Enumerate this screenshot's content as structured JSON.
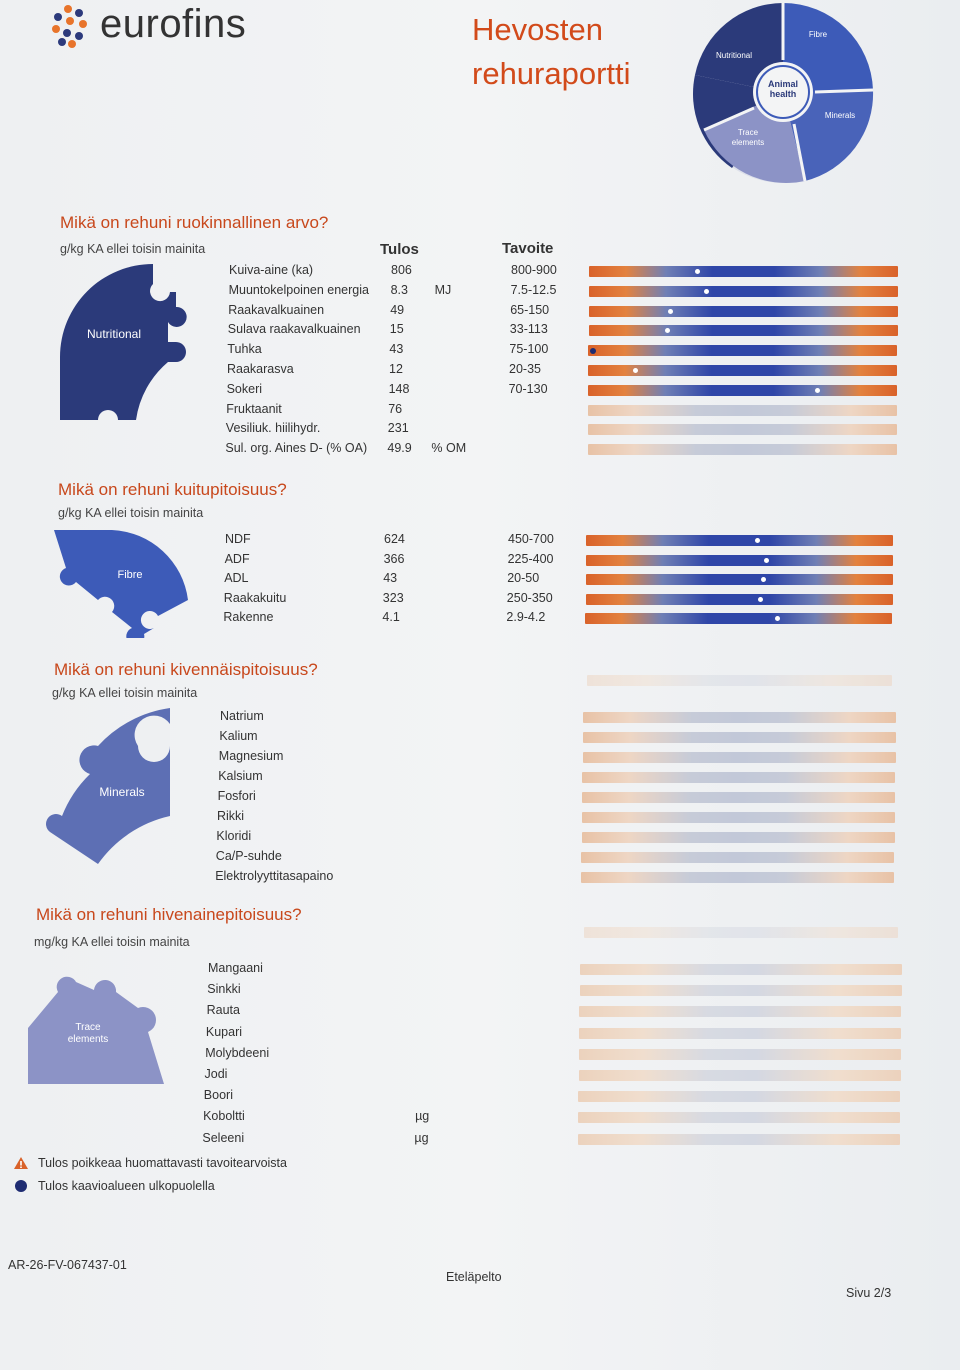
{
  "brand": {
    "name": "eurofins"
  },
  "report": {
    "title_line1": "Hevosten",
    "title_line2": "rehuraportti"
  },
  "wheel": {
    "labels": {
      "nutritional": "Nutritional",
      "fibre": "Fibre",
      "animal_health": "Animal health",
      "minerals": "Minerals",
      "trace": "Trace elements"
    }
  },
  "colors": {
    "accent": "#c8481c",
    "navy": "#2b3a7a",
    "blue": "#3d5bb8",
    "slate": "#5d6fb4",
    "lavender": "#8c93c6",
    "orange": "#d9622a"
  },
  "headers": {
    "result": "Tulos",
    "target": "Tavoite"
  },
  "nutritional": {
    "title": "Mikä on rehuni ruokinnallinen arvo?",
    "unit_note": "g/kg KA ellei toisin mainita",
    "puzzle_label": "Nutritional",
    "rows": [
      {
        "label": "Kuiva-aine (ka)",
        "value": "806",
        "unit": "",
        "target": "800-900",
        "bar": "active",
        "marker": 0.35,
        "marker_style": "white"
      },
      {
        "label": "Muuntokelpoinen energia",
        "value": "8.3",
        "unit": "MJ",
        "target": "7.5-12.5",
        "bar": "active",
        "marker": 0.38,
        "marker_style": "white"
      },
      {
        "label": "Raakavalkuainen",
        "value": "49",
        "unit": "",
        "target": "65-150",
        "bar": "active",
        "marker": 0.26,
        "marker_style": "white"
      },
      {
        "label": "Sulava raakavalkuainen",
        "value": "15",
        "unit": "",
        "target": "33-113",
        "bar": "active",
        "marker": 0.25,
        "marker_style": "white"
      },
      {
        "label": "Tuhka",
        "value": "43",
        "unit": "",
        "target": "75-100",
        "bar": "active",
        "marker": 0.005,
        "marker_style": "dark"
      },
      {
        "label": "Raakarasva",
        "value": "12",
        "unit": "",
        "target": "20-35",
        "bar": "active",
        "marker": 0.15,
        "marker_style": "white"
      },
      {
        "label": "Sokeri",
        "value": "148",
        "unit": "",
        "target": "70-130",
        "bar": "active",
        "marker": 0.75,
        "marker_style": "white"
      },
      {
        "label": "Fruktaanit",
        "value": "76",
        "unit": "",
        "target": "",
        "bar": "pale",
        "marker": null
      },
      {
        "label": "Vesiliuk. hiilihydr.",
        "value": "231",
        "unit": "",
        "target": "",
        "bar": "pale",
        "marker": null
      },
      {
        "label": "Sul. org. Aines D- (% OA)",
        "value": "49.9",
        "unit": "% OM",
        "target": "",
        "bar": "pale",
        "marker": null
      }
    ]
  },
  "fibre": {
    "title": "Mikä on rehuni kuitupitoisuus?",
    "unit_note": "g/kg KA ellei toisin mainita",
    "puzzle_label": "Fibre",
    "rows": [
      {
        "label": "NDF",
        "value": "624",
        "unit": "",
        "target": "450-700",
        "bar": "active",
        "marker": 0.56,
        "marker_style": "white"
      },
      {
        "label": "ADF",
        "value": "366",
        "unit": "",
        "target": "225-400",
        "bar": "active",
        "marker": 0.59,
        "marker_style": "white"
      },
      {
        "label": "ADL",
        "value": "43",
        "unit": "",
        "target": "20-50",
        "bar": "active",
        "marker": 0.58,
        "marker_style": "white"
      },
      {
        "label": "Raakakuitu",
        "value": "323",
        "unit": "",
        "target": "250-350",
        "bar": "active",
        "marker": 0.57,
        "marker_style": "white"
      },
      {
        "label": "Rakenne",
        "value": "4.1",
        "unit": "",
        "target": "2.9-4.2",
        "bar": "active",
        "marker": 0.63,
        "marker_style": "white"
      }
    ]
  },
  "minerals": {
    "title": "Mikä on rehuni kivennäispitoisuus?",
    "unit_note": "g/kg KA ellei toisin mainita",
    "puzzle_label": "Minerals",
    "rows": [
      {
        "label": "Natrium"
      },
      {
        "label": "Kalium"
      },
      {
        "label": "Magnesium"
      },
      {
        "label": "Kalsium"
      },
      {
        "label": "Fosfori"
      },
      {
        "label": "Rikki"
      },
      {
        "label": "Kloridi"
      },
      {
        "label": "Ca/P-suhde"
      },
      {
        "label": "Elektrolyyttitasapaino"
      }
    ]
  },
  "trace": {
    "title": "Mikä on rehuni hivenainepitoisuus?",
    "unit_note": "mg/kg KA ellei toisin mainita",
    "puzzle_label": "Trace elements",
    "rows": [
      {
        "label": "Mangaani",
        "unit": ""
      },
      {
        "label": "Sinkki",
        "unit": ""
      },
      {
        "label": "Rauta",
        "unit": ""
      },
      {
        "label": "Kupari",
        "unit": ""
      },
      {
        "label": "Molybdeeni",
        "unit": ""
      },
      {
        "label": "Jodi",
        "unit": ""
      },
      {
        "label": "Boori",
        "unit": ""
      },
      {
        "label": "Koboltti",
        "unit": "µg"
      },
      {
        "label": "Seleeni",
        "unit": "µg"
      }
    ]
  },
  "legend": {
    "warning": "Tulos poikkeaa huomattavasti tavoitearvoista",
    "outside": "Tulos kaavioalueen ulkopuolella"
  },
  "footer": {
    "code": "AR-26-FV-067437-01",
    "farm": "Eteläpelto",
    "page": "Sivu 2/3"
  }
}
